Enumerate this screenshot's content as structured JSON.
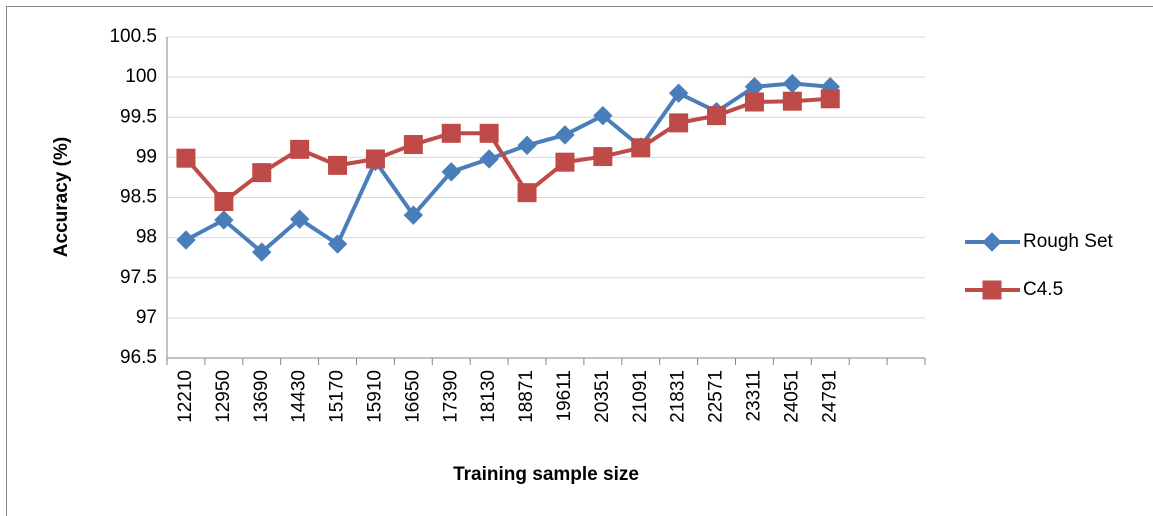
{
  "chart_data": {
    "type": "line",
    "y_label": "Accuracy (%)",
    "x_label": "Training sample size",
    "categories": [
      "12210",
      "12950",
      "13690",
      "14430",
      "15170",
      "15910",
      "16650",
      "17390",
      "18130",
      "18871",
      "19611",
      "20351",
      "21091",
      "21831",
      "22571",
      "23311",
      "24051",
      "24791",
      null,
      null
    ],
    "series": [
      {
        "name": "Rough Set",
        "color": "#4a7ebb",
        "marker": "diamond",
        "values": [
          97.97,
          98.22,
          97.82,
          98.23,
          97.92,
          98.95,
          98.28,
          98.82,
          98.98,
          99.15,
          99.28,
          99.52,
          99.13,
          99.8,
          99.57,
          99.88,
          99.92,
          99.88,
          null,
          null
        ]
      },
      {
        "name": "C4.5",
        "color": "#be4b48",
        "marker": "square",
        "values": [
          98.99,
          98.45,
          98.81,
          99.1,
          98.9,
          98.98,
          99.16,
          99.3,
          99.3,
          98.56,
          98.94,
          99.01,
          99.12,
          99.43,
          99.52,
          99.69,
          99.7,
          99.73,
          null,
          null
        ]
      }
    ],
    "ylim": [
      96.5,
      100.5
    ],
    "yticks": [
      96.5,
      97,
      97.5,
      98,
      98.5,
      99,
      99.5,
      100,
      100.5
    ],
    "grid": true,
    "legend": "right"
  }
}
